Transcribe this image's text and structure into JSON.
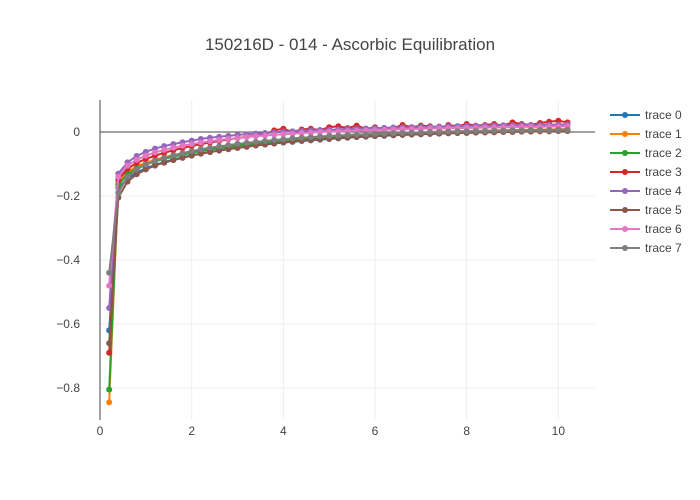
{
  "chart_data": {
    "type": "line",
    "title": "150216D - 014 - Ascorbic Equilibration",
    "xlabel": "",
    "ylabel": "",
    "xlim": [
      0,
      10.8
    ],
    "ylim": [
      -0.9,
      0.1
    ],
    "xticks": [
      0,
      2,
      4,
      6,
      8,
      10
    ],
    "yticks": [
      0,
      -0.2,
      -0.4,
      -0.6,
      -0.8
    ],
    "grid": true,
    "legend_position": "right",
    "x": [
      0.2,
      0.4,
      0.6,
      0.8,
      1.0,
      1.2,
      1.4,
      1.6,
      1.8,
      2.0,
      2.2,
      2.4,
      2.6,
      2.8,
      3.0,
      3.2,
      3.4,
      3.6,
      3.8,
      4.0,
      4.2,
      4.4,
      4.6,
      4.8,
      5.0,
      5.2,
      5.4,
      5.6,
      5.8,
      6.0,
      6.2,
      6.4,
      6.6,
      6.8,
      7.0,
      7.2,
      7.4,
      7.6,
      7.8,
      8.0,
      8.2,
      8.4,
      8.6,
      8.8,
      9.0,
      9.2,
      9.4,
      9.6,
      9.8,
      10.0,
      10.2
    ],
    "series": [
      {
        "name": "trace 0",
        "color": "#1f77b4",
        "values": [
          -0.62,
          -0.175,
          -0.145,
          -0.127,
          -0.113,
          -0.103,
          -0.094,
          -0.086,
          -0.079,
          -0.073,
          -0.067,
          -0.062,
          -0.058,
          -0.053,
          -0.049,
          -0.046,
          -0.042,
          -0.039,
          -0.036,
          -0.033,
          -0.031,
          -0.028,
          -0.026,
          -0.024,
          -0.022,
          -0.02,
          -0.018,
          -0.016,
          -0.015,
          -0.013,
          -0.012,
          -0.01,
          -0.009,
          -0.008,
          -0.007,
          -0.006,
          -0.005,
          -0.004,
          -0.003,
          -0.002,
          -0.001,
          -0.001,
          0.0,
          0.001,
          0.001,
          0.002,
          0.002,
          0.003,
          0.003,
          0.004,
          0.004
        ]
      },
      {
        "name": "trace 1",
        "color": "#ff7f0e",
        "values": [
          -0.845,
          -0.16,
          -0.125,
          -0.108,
          -0.096,
          -0.087,
          -0.079,
          -0.072,
          -0.066,
          -0.06,
          -0.055,
          -0.05,
          -0.046,
          -0.042,
          -0.038,
          -0.035,
          -0.032,
          -0.029,
          -0.026,
          -0.024,
          -0.021,
          -0.019,
          -0.017,
          -0.015,
          -0.013,
          -0.012,
          -0.01,
          -0.009,
          -0.007,
          -0.006,
          -0.005,
          -0.004,
          -0.003,
          -0.002,
          -0.001,
          0.0,
          0.001,
          0.002,
          0.002,
          0.003,
          0.004,
          0.004,
          0.005,
          0.006,
          0.006,
          0.007,
          0.007,
          0.008,
          0.008,
          0.009,
          0.009
        ]
      },
      {
        "name": "trace 2",
        "color": "#2ca02c",
        "values": [
          -0.805,
          -0.165,
          -0.132,
          -0.114,
          -0.102,
          -0.092,
          -0.084,
          -0.077,
          -0.071,
          -0.065,
          -0.06,
          -0.055,
          -0.051,
          -0.047,
          -0.043,
          -0.04,
          -0.037,
          -0.034,
          -0.031,
          -0.028,
          -0.026,
          -0.024,
          -0.022,
          -0.02,
          -0.018,
          -0.016,
          -0.014,
          -0.013,
          -0.011,
          -0.01,
          -0.009,
          -0.008,
          -0.007,
          -0.006,
          -0.005,
          -0.004,
          -0.003,
          -0.002,
          -0.001,
          -0.001,
          0.0,
          0.001,
          0.001,
          0.002,
          0.002,
          0.003,
          0.003,
          0.004,
          0.004,
          0.005,
          0.005
        ]
      },
      {
        "name": "trace 3",
        "color": "#d62728",
        "values": [
          -0.69,
          -0.15,
          -0.115,
          -0.097,
          -0.084,
          -0.074,
          -0.065,
          -0.057,
          -0.05,
          -0.044,
          -0.038,
          -0.033,
          -0.028,
          -0.023,
          -0.019,
          -0.015,
          -0.012,
          -0.008,
          0.005,
          0.01,
          0.0,
          0.008,
          0.01,
          0.006,
          0.015,
          0.018,
          0.012,
          0.02,
          0.01,
          0.015,
          0.008,
          0.012,
          0.022,
          0.015,
          0.02,
          0.018,
          0.01,
          0.022,
          0.018,
          0.025,
          0.02,
          0.022,
          0.025,
          0.02,
          0.03,
          0.025,
          0.022,
          0.028,
          0.032,
          0.035,
          0.03
        ]
      },
      {
        "name": "trace 4",
        "color": "#9467bd",
        "values": [
          -0.55,
          -0.13,
          -0.095,
          -0.075,
          -0.062,
          -0.052,
          -0.044,
          -0.038,
          -0.032,
          -0.027,
          -0.022,
          -0.018,
          -0.015,
          -0.012,
          -0.009,
          -0.007,
          -0.005,
          -0.003,
          -0.001,
          0.001,
          0.002,
          0.004,
          0.005,
          0.006,
          0.007,
          0.008,
          0.009,
          0.01,
          0.011,
          0.012,
          0.013,
          0.014,
          0.014,
          0.015,
          0.016,
          0.016,
          0.017,
          0.018,
          0.018,
          0.019,
          0.019,
          0.02,
          0.02,
          0.021,
          0.021,
          0.022,
          0.022,
          0.022,
          0.023,
          0.023,
          0.024
        ]
      },
      {
        "name": "trace 5",
        "color": "#8c564b",
        "values": [
          -0.66,
          -0.205,
          -0.155,
          -0.132,
          -0.117,
          -0.105,
          -0.096,
          -0.088,
          -0.081,
          -0.074,
          -0.068,
          -0.063,
          -0.058,
          -0.054,
          -0.05,
          -0.046,
          -0.042,
          -0.039,
          -0.036,
          -0.033,
          -0.03,
          -0.027,
          -0.025,
          -0.023,
          -0.021,
          -0.019,
          -0.017,
          -0.015,
          -0.014,
          -0.012,
          -0.011,
          -0.01,
          -0.009,
          -0.008,
          -0.007,
          -0.006,
          -0.005,
          -0.004,
          -0.003,
          -0.003,
          -0.002,
          -0.001,
          -0.001,
          0.0,
          0.0,
          0.001,
          0.001,
          0.002,
          0.002,
          0.003,
          0.003
        ]
      },
      {
        "name": "trace 6",
        "color": "#e377c2",
        "values": [
          -0.48,
          -0.14,
          -0.105,
          -0.087,
          -0.074,
          -0.064,
          -0.056,
          -0.049,
          -0.043,
          -0.038,
          -0.033,
          -0.029,
          -0.025,
          -0.022,
          -0.019,
          -0.016,
          -0.013,
          -0.011,
          -0.009,
          -0.007,
          -0.005,
          -0.003,
          -0.002,
          0.0,
          0.001,
          0.002,
          0.003,
          0.004,
          0.005,
          0.006,
          0.007,
          0.008,
          0.009,
          0.009,
          0.01,
          0.011,
          0.011,
          0.012,
          0.012,
          0.013,
          0.013,
          0.014,
          0.014,
          0.015,
          0.015,
          0.016,
          0.016,
          0.016,
          0.017,
          0.017,
          0.018
        ]
      },
      {
        "name": "trace 7",
        "color": "#7f7f7f",
        "values": [
          -0.44,
          -0.19,
          -0.14,
          -0.117,
          -0.102,
          -0.09,
          -0.081,
          -0.073,
          -0.066,
          -0.06,
          -0.054,
          -0.049,
          -0.045,
          -0.041,
          -0.037,
          -0.034,
          -0.031,
          -0.028,
          -0.025,
          -0.023,
          -0.02,
          -0.018,
          -0.016,
          -0.014,
          -0.012,
          -0.011,
          -0.009,
          -0.008,
          -0.007,
          -0.006,
          -0.005,
          -0.004,
          -0.003,
          -0.002,
          -0.001,
          0.0,
          0.0,
          0.001,
          0.002,
          0.002,
          0.003,
          0.003,
          0.004,
          0.004,
          0.005,
          0.005,
          0.006,
          0.006,
          0.006,
          0.007,
          0.007
        ]
      }
    ]
  }
}
